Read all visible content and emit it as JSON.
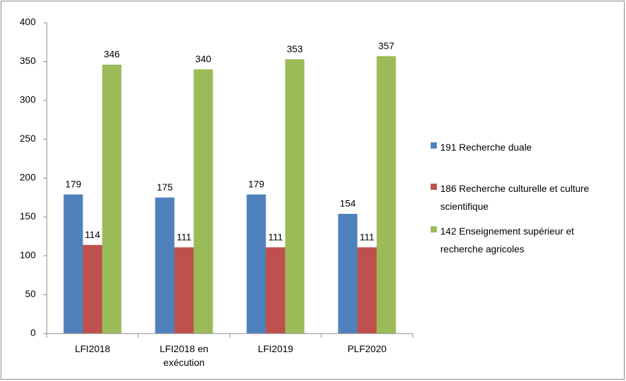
{
  "chart_data": {
    "type": "bar",
    "categories": [
      "LFI2018",
      "LFI2018 en exécution",
      "LFI2019",
      "PLF2020"
    ],
    "series": [
      {
        "name": "191 Recherche duale",
        "color": "#4f81bd",
        "values": [
          179,
          175,
          179,
          154
        ]
      },
      {
        "name": "186 Recherche culturelle et culture scientifique",
        "color": "#c0504d",
        "values": [
          114,
          111,
          111,
          111
        ]
      },
      {
        "name": "142 Enseignement supérieur et recherche agricoles",
        "color": "#9bbb59",
        "values": [
          346,
          340,
          353,
          357
        ]
      }
    ],
    "ylim": [
      0,
      400
    ],
    "yticks": [
      0,
      50,
      100,
      150,
      200,
      250,
      300,
      350,
      400
    ],
    "grid": false,
    "legend": "right"
  }
}
